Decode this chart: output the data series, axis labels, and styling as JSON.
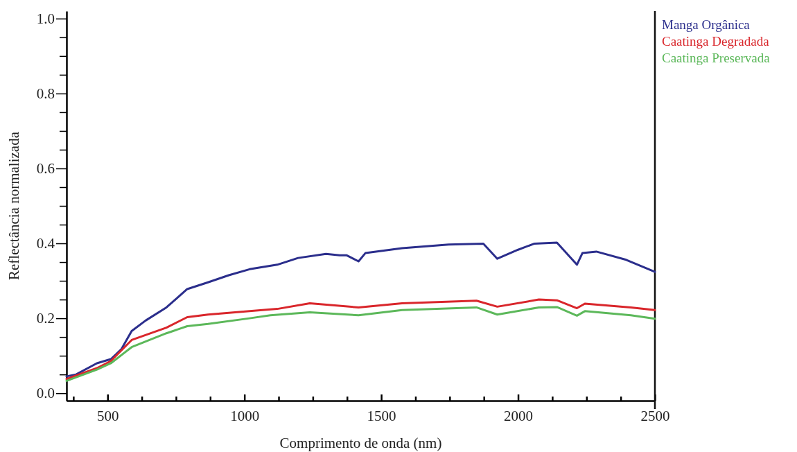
{
  "chart_data": {
    "type": "line",
    "xlabel": "Comprimento de onda (nm)",
    "ylabel": "Reflectância normalizada",
    "xlim": [
      350,
      2500
    ],
    "ylim": [
      -0.02,
      1.02
    ],
    "xticks": [
      {
        "value": 375,
        "label": null
      },
      500,
      {
        "value": 625,
        "label": null
      },
      {
        "value": 750,
        "label": null
      },
      {
        "value": 875,
        "label": null
      },
      1000,
      {
        "value": 1125,
        "label": null
      },
      {
        "value": 1250,
        "label": null
      },
      {
        "value": 1375,
        "label": null
      },
      1500,
      {
        "value": 1625,
        "label": null
      },
      {
        "value": 1750,
        "label": null
      },
      {
        "value": 1875,
        "label": null
      },
      2000,
      {
        "value": 2125,
        "label": null
      },
      {
        "value": 2250,
        "label": null
      },
      {
        "value": 2375,
        "label": null
      },
      2500
    ],
    "yticks": [
      {
        "value": 0,
        "label": "0.0"
      },
      {
        "value": 0.05,
        "label": null
      },
      {
        "value": 0.1,
        "label": null
      },
      {
        "value": 0.15,
        "label": null
      },
      {
        "value": 0.2,
        "label": "0.2"
      },
      {
        "value": 0.25,
        "label": null
      },
      {
        "value": 0.3,
        "label": null
      },
      {
        "value": 0.35,
        "label": null
      },
      {
        "value": 0.4,
        "label": "0.4"
      },
      {
        "value": 0.45,
        "label": null
      },
      {
        "value": 0.5,
        "label": null
      },
      {
        "value": 0.55,
        "label": null
      },
      {
        "value": 0.6,
        "label": "0.6"
      },
      {
        "value": 0.65,
        "label": null
      },
      {
        "value": 0.7,
        "label": null
      },
      {
        "value": 0.75,
        "label": null
      },
      {
        "value": 0.8,
        "label": "0.8"
      },
      {
        "value": 0.85,
        "label": null
      },
      {
        "value": 0.9,
        "label": null
      },
      {
        "value": 0.95,
        "label": null
      },
      {
        "value": 1.0,
        "label": "1.0"
      }
    ],
    "grid": false,
    "legend": "top right",
    "marker": "none",
    "line_style": "solid",
    "series": [
      {
        "name": "Manga Orgânica",
        "color": "#2b2e8c",
        "x": [
          350,
          385,
          461,
          512,
          550,
          588,
          639,
          715,
          791,
          867,
          943,
          1019,
          1120,
          1196,
          1298,
          1348,
          1374,
          1417,
          1442,
          1576,
          1746,
          1873,
          1924,
          2000,
          2058,
          2142,
          2215,
          2235,
          2286,
          2395,
          2500
        ],
        "values": [
          0.045,
          0.05,
          0.08,
          0.091,
          0.117,
          0.166,
          0.194,
          0.229,
          0.278,
          0.296,
          0.315,
          0.331,
          0.343,
          0.361,
          0.372,
          0.368,
          0.368,
          0.352,
          0.374,
          0.387,
          0.397,
          0.399,
          0.359,
          0.383,
          0.399,
          0.402,
          0.343,
          0.374,
          0.378,
          0.356,
          0.324
        ]
      },
      {
        "name": "Caatinga Degradada",
        "color": "#d9262b",
        "x": [
          350,
          461,
          512,
          588,
          715,
          791,
          867,
          1019,
          1120,
          1239,
          1417,
          1576,
          1848,
          1924,
          2076,
          2142,
          2215,
          2244,
          2412,
          2500
        ],
        "values": [
          0.038,
          0.067,
          0.086,
          0.142,
          0.175,
          0.203,
          0.21,
          0.219,
          0.225,
          0.24,
          0.229,
          0.24,
          0.247,
          0.231,
          0.25,
          0.248,
          0.227,
          0.239,
          0.229,
          0.222
        ]
      },
      {
        "name": "Caatinga Preservada",
        "color": "#5cb85a",
        "x": [
          350,
          461,
          512,
          588,
          715,
          791,
          867,
          1019,
          1095,
          1239,
          1417,
          1576,
          1848,
          1924,
          2076,
          2142,
          2215,
          2244,
          2412,
          2500
        ],
        "values": [
          0.033,
          0.063,
          0.08,
          0.123,
          0.16,
          0.179,
          0.185,
          0.2,
          0.208,
          0.216,
          0.208,
          0.222,
          0.229,
          0.21,
          0.229,
          0.23,
          0.207,
          0.219,
          0.208,
          0.199
        ]
      }
    ]
  }
}
